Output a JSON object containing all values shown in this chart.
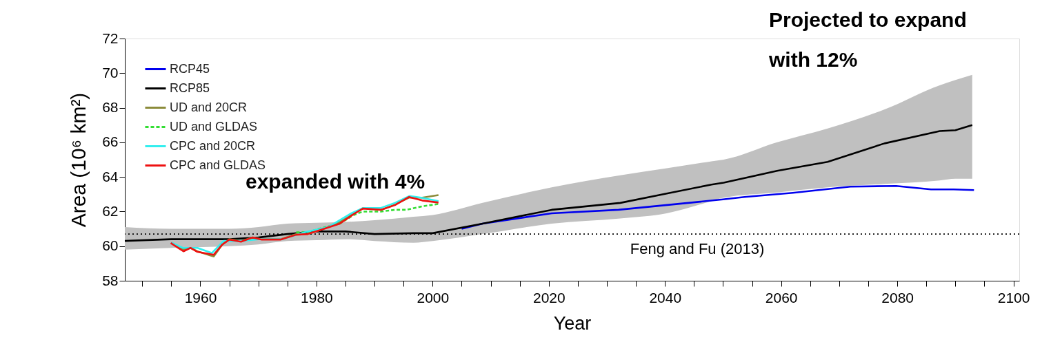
{
  "chart_data": {
    "type": "line",
    "xlabel": "Year",
    "ylabel": "Area (10⁶ km²)",
    "xlim": [
      1947,
      2101
    ],
    "ylim": [
      58,
      72
    ],
    "xticks": [
      {
        "value": 1950,
        "label": null
      },
      {
        "value": 1955,
        "label": null
      },
      1960,
      {
        "value": 1965,
        "label": null
      },
      {
        "value": 1970,
        "label": null
      },
      {
        "value": 1975,
        "label": null
      },
      1980,
      {
        "value": 1985,
        "label": null
      },
      {
        "value": 1990,
        "label": null
      },
      {
        "value": 1995,
        "label": null
      },
      2000,
      {
        "value": 2005,
        "label": null
      },
      {
        "value": 2010,
        "label": null
      },
      {
        "value": 2015,
        "label": null
      },
      2020,
      {
        "value": 2025,
        "label": null
      },
      {
        "value": 2030,
        "label": null
      },
      {
        "value": 2035,
        "label": null
      },
      2040,
      {
        "value": 2045,
        "label": null
      },
      {
        "value": 2050,
        "label": null
      },
      {
        "value": 2055,
        "label": null
      },
      2060,
      {
        "value": 2065,
        "label": null
      },
      {
        "value": 2070,
        "label": null
      },
      {
        "value": 2075,
        "label": null
      },
      2080,
      {
        "value": 2085,
        "label": null
      },
      {
        "value": 2090,
        "label": null
      },
      {
        "value": 2095,
        "label": null
      },
      2100
    ],
    "yticks": [
      58,
      60,
      62,
      64,
      66,
      68,
      70,
      72
    ],
    "grid": false,
    "legend": "top left",
    "series": [
      {
        "name": "RCP45",
        "color": "#0000ee",
        "line_style": "solid",
        "x": [
          2005,
          2008.6,
          2020.5,
          2032,
          2044,
          2050,
          2053.7,
          2062,
          2071.9,
          2079.8,
          2085.8,
          2089.7,
          2093.2
        ],
        "values": [
          61.0,
          61.3,
          61.9,
          62.1,
          62.5,
          62.7,
          62.84,
          63.08,
          63.44,
          63.48,
          63.28,
          63.28,
          63.24
        ]
      },
      {
        "name": "RCP85",
        "color": "#000000",
        "line_style": "solid",
        "x": [
          1947,
          1955,
          1965,
          1970,
          1975,
          1980,
          1985,
          1990,
          1996.7,
          2000,
          2008.6,
          2020.5,
          2032.3,
          2040.3,
          2048,
          2050.1,
          2059.3,
          2068,
          2077.8,
          2087.3,
          2090,
          2092.9
        ],
        "values": [
          60.3,
          60.4,
          60.4,
          60.5,
          60.7,
          60.85,
          60.85,
          60.7,
          60.75,
          60.75,
          61.3,
          62.1,
          62.5,
          63.04,
          63.56,
          63.67,
          64.35,
          64.87,
          65.94,
          66.65,
          66.7,
          67.0
        ],
        "lower": [
          59.8,
          59.9,
          60.0,
          60.1,
          60.3,
          60.35,
          60.4,
          60.3,
          60.2,
          60.3,
          60.7,
          61.3,
          61.6,
          61.9,
          62.6,
          62.8,
          63.1,
          63.4,
          63.6,
          63.8,
          63.9,
          63.9
        ],
        "upper": [
          61.1,
          61.0,
          61.0,
          61.1,
          61.3,
          61.35,
          61.4,
          61.5,
          61.7,
          61.8,
          62.5,
          63.4,
          64.1,
          64.5,
          64.9,
          65.0,
          66.0,
          66.8,
          67.9,
          69.3,
          69.6,
          69.9
        ]
      },
      {
        "name": "UD and 20CR",
        "color": "#8b8b3a",
        "line_style": "solid",
        "x": [
          1955,
          1957.1,
          1958.3,
          1959.5,
          1962.3,
          1963.8,
          1965,
          1967,
          1969,
          1970.6,
          1973.8,
          1976.5,
          1978.5,
          1980.4,
          1984,
          1986.4,
          1988,
          1991.1,
          1993.5,
          1995.9,
          1998.2,
          2001
        ],
        "values": [
          60.2,
          59.8,
          59.9,
          59.7,
          59.4,
          60.1,
          60.4,
          60.3,
          60.5,
          60.4,
          60.4,
          60.7,
          60.7,
          60.9,
          61.4,
          61.9,
          62.2,
          62.1,
          62.4,
          62.8,
          62.8,
          62.95
        ]
      },
      {
        "name": "UD and GLDAS",
        "color": "#33dd33",
        "line_style": "dashed",
        "x": [
          1976.5,
          1978.5,
          1980.4,
          1984,
          1986.4,
          1988,
          1991.1,
          1993.5,
          1995.5,
          1998.2,
          2001
        ],
        "values": [
          60.8,
          60.8,
          61.0,
          61.3,
          61.8,
          62.0,
          62.0,
          62.1,
          62.1,
          62.3,
          62.44
        ]
      },
      {
        "name": "CPC and 20CR",
        "color": "#33eeee",
        "line_style": "solid",
        "x": [
          1955,
          1957,
          1959.5,
          1962,
          1964,
          1967,
          1970,
          1974,
          1978,
          1982,
          1986,
          1988,
          1991,
          1993.5,
          1996,
          1998,
          2001
        ],
        "values": [
          60.2,
          59.9,
          59.9,
          59.6,
          60.3,
          60.3,
          60.4,
          60.4,
          60.8,
          61.1,
          61.9,
          62.2,
          62.2,
          62.5,
          62.9,
          62.8,
          62.6
        ]
      },
      {
        "name": "CPC and GLDAS",
        "color": "#ee1111",
        "line_style": "solid",
        "x": [
          1954.9,
          1957.1,
          1958.3,
          1959.5,
          1962.3,
          1963.8,
          1965,
          1967,
          1969,
          1970.6,
          1973.8,
          1976.5,
          1978.5,
          1980.4,
          1984,
          1986.4,
          1988,
          1991.1,
          1993.5,
          1995.9,
          1998.2,
          2001
        ],
        "values": [
          60.18,
          59.7,
          59.9,
          59.67,
          59.5,
          60.1,
          60.38,
          60.26,
          60.5,
          60.38,
          60.38,
          60.66,
          60.7,
          60.9,
          61.3,
          61.85,
          62.17,
          62.1,
          62.37,
          62.84,
          62.64,
          62.52
        ]
      }
    ],
    "ref_lines": [
      {
        "axis": "y",
        "value": 60.7,
        "label": "Feng and Fu (2013)",
        "color": "#000000",
        "line_style": "dotted"
      }
    ],
    "annotations": [
      "expanded with 4%",
      "Projected to expand with 12%"
    ]
  }
}
